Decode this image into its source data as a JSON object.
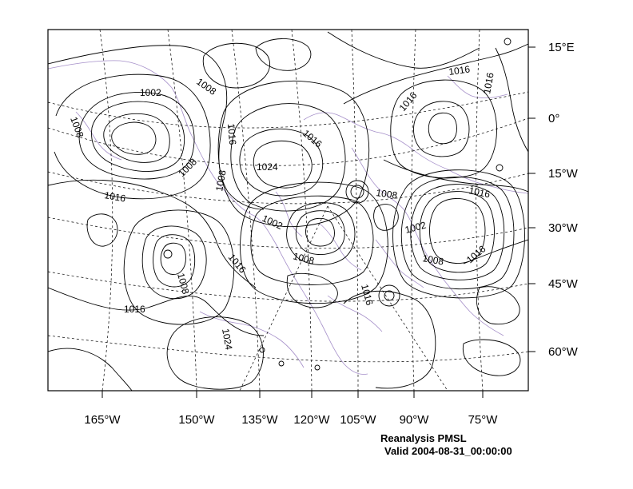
{
  "map": {
    "right_axis_labels": [
      "15°E",
      "0°",
      "15°W",
      "30°W",
      "45°W",
      "60°W"
    ],
    "bottom_axis_labels": [
      "165°W",
      "150°W",
      "135°W",
      "120°W",
      "105°W",
      "90°W",
      "75°W"
    ],
    "contour_labels": [
      "1002",
      "1008",
      "1008",
      "1016",
      "1024",
      "1016",
      "1016",
      "1008",
      "1016",
      "1016",
      "1016",
      "1008",
      "1002",
      "1008",
      "1008",
      "1002",
      "1016",
      "1008",
      "1016",
      "1016",
      "1008",
      "1016",
      "1024",
      "1016"
    ],
    "colors": {
      "contour": "#000000",
      "coastline": "#a58fc9",
      "grid": "#000000"
    }
  },
  "caption": {
    "title": "Reanalysis PMSL",
    "valid": "Valid 2004-08-31_00:00:00"
  }
}
